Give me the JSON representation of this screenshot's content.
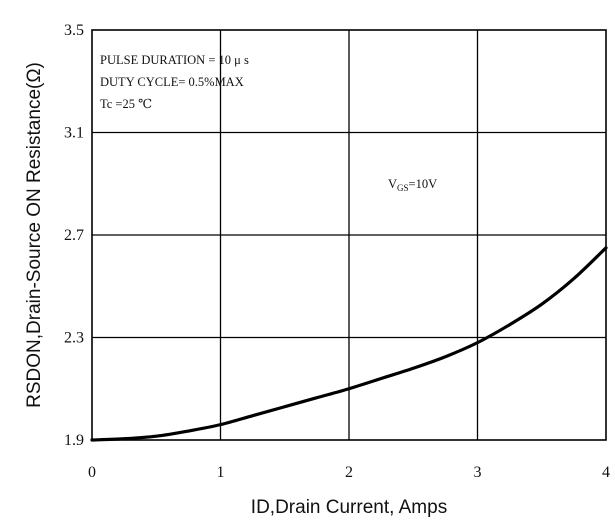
{
  "chart_data": {
    "type": "line",
    "title": "",
    "xlabel": "ID,Drain Current, Amps",
    "ylabel": "RSDON,Drain-Source ON Resistance(Ω)",
    "xlim": [
      0,
      4
    ],
    "ylim": [
      1.9,
      3.5
    ],
    "x_ticks": [
      "0",
      "1",
      "2",
      "3",
      "4"
    ],
    "y_ticks": [
      "1.9",
      "2.3",
      "2.7",
      "3.1",
      "3.5"
    ],
    "grid": true,
    "annotations": {
      "line1": "PULSE   DURATION = 10 μ s",
      "line2": "DUTY   CYCLE= 0.5%MAX",
      "line3": "Tc =25  ℃",
      "vgs_main": "V",
      "vgs_sub": "GS",
      "vgs_value": "=10V"
    },
    "series": [
      {
        "x": [
          0,
          0.25,
          0.5,
          0.75,
          1.0,
          1.25,
          1.5,
          1.75,
          2.0,
          2.25,
          2.5,
          2.75,
          3.0,
          3.25,
          3.5,
          3.75,
          4.0
        ],
        "y": [
          1.9,
          1.905,
          1.915,
          1.935,
          1.96,
          1.995,
          2.03,
          2.065,
          2.1,
          2.14,
          2.18,
          2.225,
          2.28,
          2.35,
          2.43,
          2.53,
          2.65
        ]
      }
    ]
  }
}
